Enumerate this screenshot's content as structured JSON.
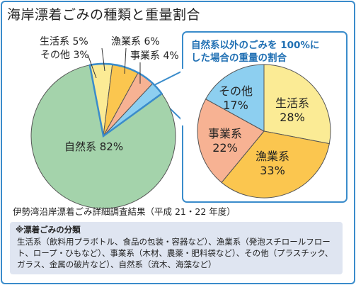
{
  "title": "海岸漂着ごみの種類と重量割合",
  "chart_data": [
    {
      "type": "pie",
      "title": "",
      "slices": [
        {
          "name": "生活系",
          "value": 5,
          "label": "生活系 5%",
          "color": "#fbeb95"
        },
        {
          "name": "漁業系",
          "value": 6,
          "label": "漁業系 6%",
          "color": "#fbc64f"
        },
        {
          "name": "事業系",
          "value": 4,
          "label": "事業系 4%",
          "color": "#f7b293"
        },
        {
          "name": "その他",
          "value": 3,
          "label": "その他 3%",
          "color": "#8dcff0"
        },
        {
          "name": "自然系",
          "value": 82,
          "label": "自然系 82%",
          "color": "#a4d3ab"
        }
      ]
    },
    {
      "type": "pie",
      "title": "自然系以外のごみを 100%にした場合の重量の割合",
      "slices": [
        {
          "name": "生活系",
          "value": 28,
          "label": "28%",
          "color": "#fbeb95"
        },
        {
          "name": "漁業系",
          "value": 33,
          "label": "33%",
          "color": "#fbc64f"
        },
        {
          "name": "事業系",
          "value": 22,
          "label": "22%",
          "color": "#f7b293"
        },
        {
          "name": "その他",
          "value": 17,
          "label": "17%",
          "color": "#8dcff0"
        }
      ]
    }
  ],
  "callout": {
    "line1": "自然系以外のごみを 100%に",
    "line2": "した場合の重量の割合"
  },
  "source": "伊勢湾沿岸漂着ごみ詳細調査結果（平成 21・22 年度）",
  "notes": {
    "title": "※漂着ごみの分類",
    "body": "生活系（飲料用プラボトル、食品の包装・容器など）、漁業系（発泡スチロールフロート、ロープ・ひもなど）、事業系（木材、農薬・肥料袋など）、その他（プラスチック、ガラス、金属の破片など）、自然系（流木、海藻など）"
  },
  "colors": {
    "accent": "#3a8ccb",
    "note_bg": "#dfe5f1"
  }
}
